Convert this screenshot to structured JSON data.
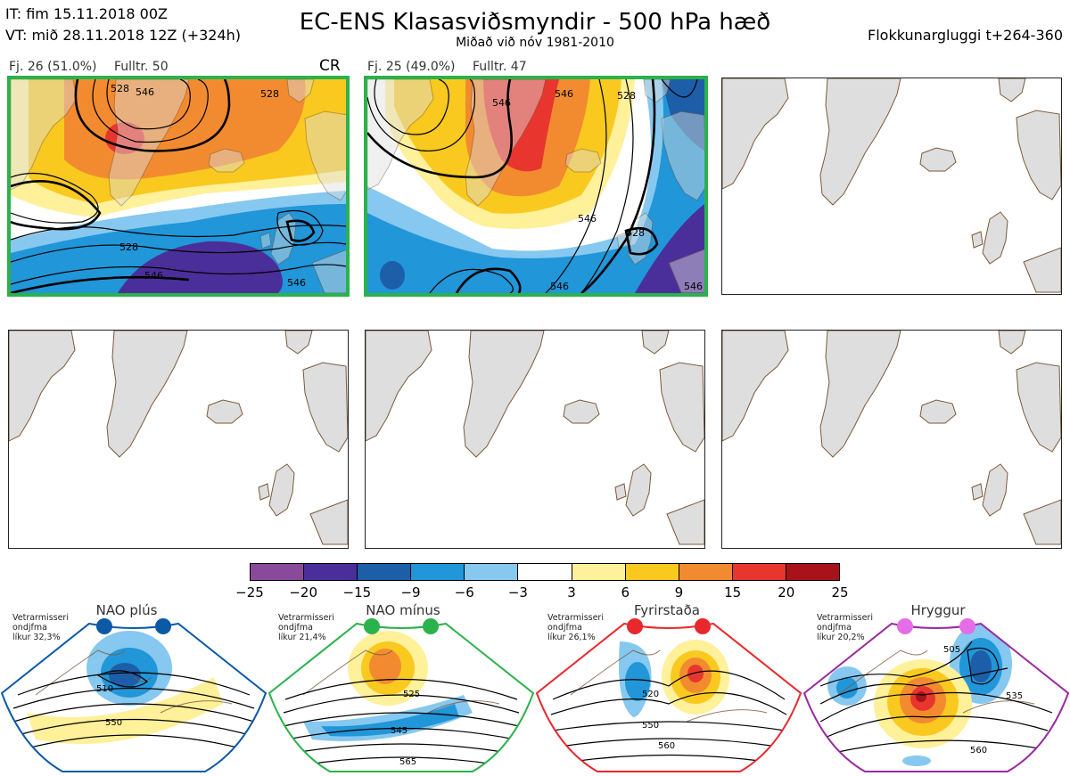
{
  "header": {
    "it_line": "IT: fim 15.11.2018 00Z",
    "vt_line": "VT: mið 28.11.2018 12Z  (+324h)",
    "title": "EC-ENS Klasasviðsmyndir - 500 hPa hæð",
    "subtitle": "Miðað við nóv 1981-2010",
    "window": "Flokkunargluggi t+264-360"
  },
  "clusters": [
    {
      "label": "Fj. 26 (51.0%)",
      "rep": "Fulltr. 50",
      "tag": "CR",
      "contours": [
        "528",
        "546",
        "528",
        "528",
        "546",
        "546"
      ]
    },
    {
      "label": "Fj. 25 (49.0%)",
      "rep": "Fulltr. 47",
      "tag": "",
      "contours": [
        "546",
        "546",
        "528",
        "546",
        "546",
        "528",
        "546"
      ]
    }
  ],
  "colorbar": {
    "colors": [
      "#8a4a9c",
      "#4a2f9a",
      "#1d5ea8",
      "#2196d9",
      "#86c8ef",
      "#ffffff",
      "#fff09a",
      "#f9c920",
      "#f28b30",
      "#e8362e",
      "#a8131a"
    ],
    "ticks": [
      "−25",
      "−20",
      "−15",
      "−9",
      "−6",
      "−3",
      "3",
      "6",
      "9",
      "15",
      "20",
      "25"
    ]
  },
  "regimes": [
    {
      "name": "NAO plús",
      "note": "Vetrarmisseri\nondjfma\nlíkur 32,3%",
      "color": "#0c5aa6",
      "contours": [
        "510",
        "550"
      ]
    },
    {
      "name": "NAO mínus",
      "note": "Vetrarmisseri\nondjfma\nlíkur 21,4%",
      "color": "#2bb24c",
      "contours": [
        "525",
        "545",
        "565"
      ]
    },
    {
      "name": "Fyrirstaða",
      "note": "Vetrarmisseri\nondjfma\nlíkur 26,1%",
      "color": "#e8282d",
      "contours": [
        "520",
        "550",
        "560"
      ]
    },
    {
      "name": "Hryggur",
      "note": "Vetrarmisseri\nondjfma\nlíkur 20,2%",
      "color": "#9a2aa0",
      "contours": [
        "505",
        "535",
        "560"
      ]
    }
  ],
  "land_color": "#dedede",
  "coast_color": "#7b5a3a"
}
